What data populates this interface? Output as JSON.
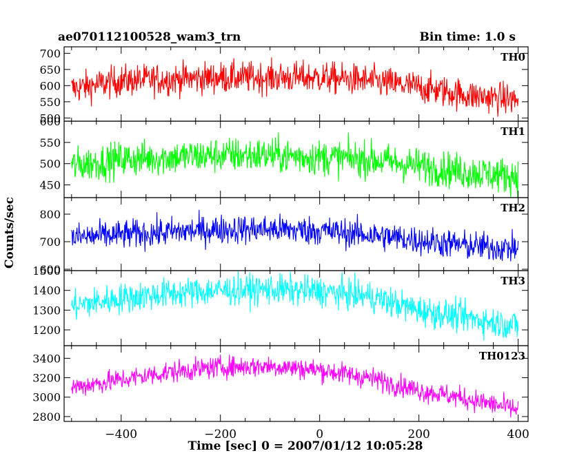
{
  "header": {
    "title": "ae070112100528_wam3_trn",
    "bin_time": "Bin time: 1.0 s"
  },
  "chart_data": {
    "type": "line",
    "xlabel": "Time [sec] 0 = 2007/01/12 10:05:28",
    "ylabel": "Counts/sec",
    "xlim": [
      -515,
      420
    ],
    "x_ticks": [
      -400,
      -200,
      0,
      200,
      400
    ],
    "x_tick_labels": [
      "−400",
      "−200",
      "0",
      "200",
      "400"
    ],
    "x_range": [
      -500,
      400
    ],
    "panels": [
      {
        "name": "TH0",
        "color": "#ff0000",
        "ylim": [
          490,
          720
        ],
        "y_ticks": [
          500,
          550,
          600,
          650,
          700
        ],
        "trend_x": [
          -500,
          -400,
          -300,
          -200,
          -100,
          0,
          100,
          200,
          300,
          400
        ],
        "trend_y": [
          590,
          615,
          620,
          625,
          625,
          625,
          615,
          595,
          570,
          555
        ],
        "noise": 35
      },
      {
        "name": "TH1",
        "color": "#00ff00",
        "ylim": [
          420,
          600
        ],
        "y_ticks": [
          450,
          500,
          550,
          600
        ],
        "trend_x": [
          -500,
          -400,
          -300,
          -200,
          -100,
          0,
          100,
          200,
          300,
          400
        ],
        "trend_y": [
          495,
          510,
          515,
          520,
          520,
          515,
          510,
          495,
          480,
          470
        ],
        "noise": 30
      },
      {
        "name": "TH2",
        "color": "#0000ff",
        "ylim": [
          595,
          860
        ],
        "y_ticks": [
          600,
          700,
          800
        ],
        "trend_x": [
          -500,
          -400,
          -300,
          -200,
          -100,
          0,
          100,
          200,
          300,
          400
        ],
        "trend_y": [
          715,
          725,
          735,
          745,
          745,
          740,
          725,
          705,
          685,
          675
        ],
        "noise": 38
      },
      {
        "name": "TH3",
        "color": "#00ffff",
        "ylim": [
          1120,
          1500
        ],
        "y_ticks": [
          1200,
          1300,
          1400,
          1500
        ],
        "trend_x": [
          -500,
          -400,
          -300,
          -200,
          -100,
          0,
          100,
          200,
          300,
          400
        ],
        "trend_y": [
          1320,
          1360,
          1385,
          1400,
          1405,
          1395,
          1370,
          1300,
          1260,
          1220
        ],
        "noise": 55
      },
      {
        "name": "TH0123",
        "color": "#ff00ff",
        "ylim": [
          2750,
          3530
        ],
        "y_ticks": [
          2800,
          3000,
          3200,
          3400
        ],
        "trend_x": [
          -500,
          -400,
          -300,
          -200,
          -100,
          0,
          100,
          200,
          300,
          400
        ],
        "trend_y": [
          3100,
          3180,
          3260,
          3310,
          3320,
          3280,
          3200,
          3070,
          2980,
          2870
        ],
        "noise": 80
      }
    ]
  }
}
